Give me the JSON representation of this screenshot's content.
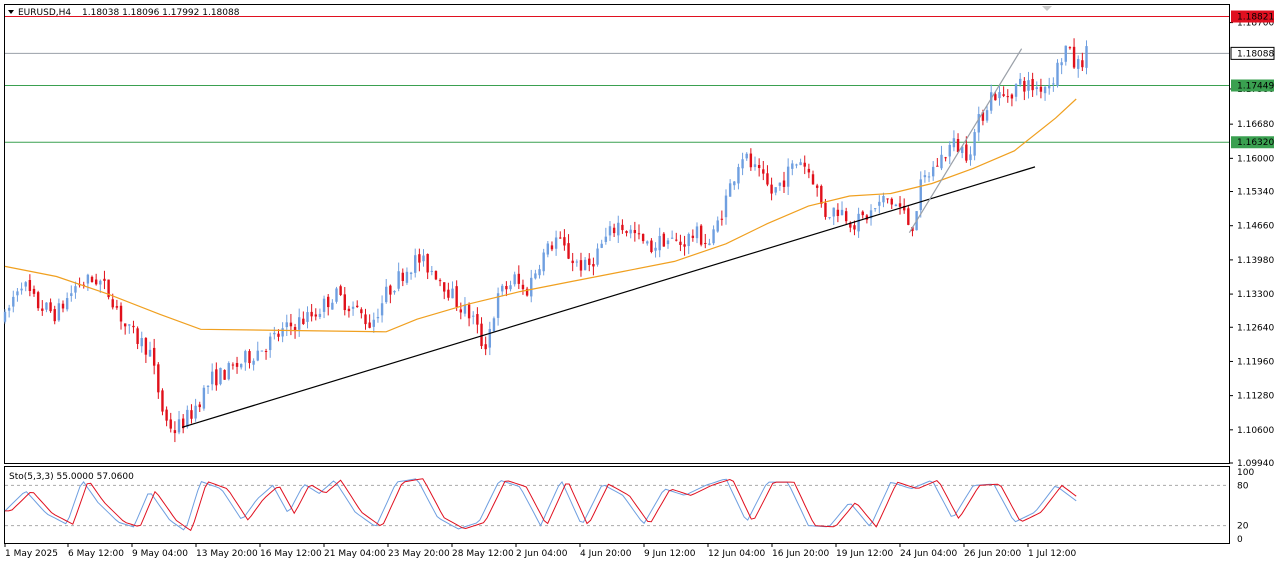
{
  "header": {
    "symbol": "EURUSD,H4",
    "ohlc": "1.18038 1.18096 1.17992 1.18088"
  },
  "indicator": {
    "label": "Sto(5,3,3) 55.0000 57.0600",
    "levels": [
      "100",
      "80",
      "20",
      "0"
    ]
  },
  "colors": {
    "bull": "#6f9fe0",
    "bear": "#e0101a",
    "ma": "#f0a020",
    "resistance": "#e01020",
    "support": "#3aa050",
    "current": "#9aa0a8",
    "sto_main": "#6f9fe0",
    "sto_signal": "#e01020"
  },
  "chart_data": {
    "type": "candlestick",
    "symbol": "EURUSD",
    "timeframe": "H4",
    "ylim": [
      1.0994,
      1.1905
    ],
    "y_ticks": [
      "1.18700",
      "1.17380",
      "1.16680",
      "1.16000",
      "1.15340",
      "1.14660",
      "1.13980",
      "1.13300",
      "1.12640",
      "1.11960",
      "1.11280",
      "1.10600",
      "1.09940"
    ],
    "y_tick_values": [
      1.187,
      1.1738,
      1.1668,
      1.16,
      1.1534,
      1.1466,
      1.1398,
      1.133,
      1.1264,
      1.1196,
      1.1128,
      1.106,
      1.0994
    ],
    "x_ticks": [
      "1 May 2025",
      "6 May 12:00",
      "9 May 04:00",
      "13 May 20:00",
      "16 May 12:00",
      "21 May 04:00",
      "23 May 20:00",
      "28 May 12:00",
      "2 Jun 04:00",
      "4 Jun 20:00",
      "9 Jun 12:00",
      "12 Jun 04:00",
      "16 Jun 20:00",
      "19 Jun 12:00",
      "24 Jun 04:00",
      "26 Jun 20:00",
      "1 Jul 12:00"
    ],
    "levels": [
      {
        "label": "1.18821",
        "value": 1.18821,
        "kind": "resistance"
      },
      {
        "label": "1.18088",
        "value": 1.18088,
        "kind": "current"
      },
      {
        "label": "1.17449",
        "value": 1.17449,
        "kind": "support"
      },
      {
        "label": "1.16320",
        "value": 1.1632,
        "kind": "support"
      }
    ],
    "trendlines": [
      {
        "from": [
          0.172,
          1.1065
        ],
        "to": [
          1.0,
          1.1583
        ],
        "color": "#000000"
      },
      {
        "from": [
          0.878,
          1.1452
        ],
        "to": [
          0.987,
          1.1818
        ],
        "color": "#9aa0a8"
      }
    ],
    "price_anchors": [
      [
        0.0,
        1.128
      ],
      [
        0.015,
        1.136
      ],
      [
        0.03,
        1.131
      ],
      [
        0.05,
        1.129
      ],
      [
        0.07,
        1.135
      ],
      [
        0.09,
        1.136
      ],
      [
        0.105,
        1.132
      ],
      [
        0.118,
        1.126
      ],
      [
        0.14,
        1.122
      ],
      [
        0.155,
        1.108
      ],
      [
        0.165,
        1.106
      ],
      [
        0.18,
        1.109
      ],
      [
        0.2,
        1.116
      ],
      [
        0.22,
        1.118
      ],
      [
        0.24,
        1.121
      ],
      [
        0.26,
        1.124
      ],
      [
        0.28,
        1.127
      ],
      [
        0.3,
        1.129
      ],
      [
        0.32,
        1.133
      ],
      [
        0.34,
        1.13
      ],
      [
        0.355,
        1.127
      ],
      [
        0.37,
        1.133
      ],
      [
        0.385,
        1.137
      ],
      [
        0.4,
        1.14
      ],
      [
        0.42,
        1.137
      ],
      [
        0.44,
        1.131
      ],
      [
        0.455,
        1.128
      ],
      [
        0.465,
        1.122
      ],
      [
        0.48,
        1.133
      ],
      [
        0.495,
        1.136
      ],
      [
        0.505,
        1.133
      ],
      [
        0.52,
        1.14
      ],
      [
        0.535,
        1.144
      ],
      [
        0.55,
        1.14
      ],
      [
        0.565,
        1.138
      ],
      [
        0.58,
        1.143
      ],
      [
        0.595,
        1.147
      ],
      [
        0.61,
        1.145
      ],
      [
        0.625,
        1.142
      ],
      [
        0.64,
        1.144
      ],
      [
        0.655,
        1.143
      ],
      [
        0.67,
        1.145
      ],
      [
        0.685,
        1.143
      ],
      [
        0.7,
        1.152
      ],
      [
        0.715,
        1.161
      ],
      [
        0.73,
        1.157
      ],
      [
        0.745,
        1.153
      ],
      [
        0.76,
        1.157
      ],
      [
        0.772,
        1.16
      ],
      [
        0.785,
        1.156
      ],
      [
        0.795,
        1.149
      ],
      [
        0.81,
        1.15
      ],
      [
        0.825,
        1.147
      ],
      [
        0.84,
        1.149
      ],
      [
        0.855,
        1.152
      ],
      [
        0.87,
        1.15
      ],
      [
        0.88,
        1.146
      ],
      [
        0.89,
        1.155
      ],
      [
        0.905,
        1.159
      ],
      [
        0.92,
        1.163
      ],
      [
        0.935,
        1.161
      ],
      [
        0.945,
        1.167
      ],
      [
        0.958,
        1.173
      ],
      [
        0.97,
        1.172
      ],
      [
        0.985,
        1.175
      ],
      [
        1.0,
        1.174
      ],
      [
        1.015,
        1.175
      ],
      [
        1.03,
        1.182
      ],
      [
        1.04,
        1.178
      ],
      [
        1.05,
        1.1809
      ]
    ],
    "ma_anchors": [
      [
        0.0,
        1.1385
      ],
      [
        0.05,
        1.1365
      ],
      [
        0.1,
        1.133
      ],
      [
        0.15,
        1.129
      ],
      [
        0.19,
        1.126
      ],
      [
        0.37,
        1.1255
      ],
      [
        0.4,
        1.128
      ],
      [
        0.45,
        1.131
      ],
      [
        0.5,
        1.1335
      ],
      [
        0.55,
        1.1355
      ],
      [
        0.6,
        1.1375
      ],
      [
        0.65,
        1.1395
      ],
      [
        0.7,
        1.143
      ],
      [
        0.74,
        1.147
      ],
      [
        0.78,
        1.1505
      ],
      [
        0.82,
        1.1525
      ],
      [
        0.86,
        1.153
      ],
      [
        0.9,
        1.155
      ],
      [
        0.94,
        1.158
      ],
      [
        0.98,
        1.1615
      ],
      [
        1.02,
        1.168
      ],
      [
        1.04,
        1.1718
      ]
    ],
    "stochastic_anchors": [
      [
        0.0,
        42
      ],
      [
        0.02,
        72
      ],
      [
        0.04,
        38
      ],
      [
        0.06,
        22
      ],
      [
        0.075,
        88
      ],
      [
        0.09,
        55
      ],
      [
        0.11,
        25
      ],
      [
        0.125,
        18
      ],
      [
        0.14,
        72
      ],
      [
        0.16,
        28
      ],
      [
        0.175,
        12
      ],
      [
        0.19,
        86
      ],
      [
        0.21,
        75
      ],
      [
        0.23,
        28
      ],
      [
        0.245,
        60
      ],
      [
        0.26,
        80
      ],
      [
        0.275,
        38
      ],
      [
        0.29,
        82
      ],
      [
        0.305,
        68
      ],
      [
        0.32,
        88
      ],
      [
        0.34,
        40
      ],
      [
        0.36,
        18
      ],
      [
        0.38,
        85
      ],
      [
        0.4,
        90
      ],
      [
        0.42,
        32
      ],
      [
        0.44,
        15
      ],
      [
        0.46,
        25
      ],
      [
        0.48,
        88
      ],
      [
        0.5,
        78
      ],
      [
        0.52,
        20
      ],
      [
        0.54,
        88
      ],
      [
        0.56,
        20
      ],
      [
        0.58,
        82
      ],
      [
        0.6,
        65
      ],
      [
        0.62,
        22
      ],
      [
        0.64,
        75
      ],
      [
        0.66,
        65
      ],
      [
        0.68,
        80
      ],
      [
        0.7,
        90
      ],
      [
        0.72,
        25
      ],
      [
        0.74,
        85
      ],
      [
        0.76,
        85
      ],
      [
        0.78,
        20
      ],
      [
        0.8,
        18
      ],
      [
        0.82,
        55
      ],
      [
        0.84,
        18
      ],
      [
        0.86,
        85
      ],
      [
        0.88,
        75
      ],
      [
        0.9,
        88
      ],
      [
        0.92,
        30
      ],
      [
        0.94,
        80
      ],
      [
        0.96,
        82
      ],
      [
        0.98,
        25
      ],
      [
        1.0,
        40
      ],
      [
        1.02,
        80
      ],
      [
        1.04,
        57
      ]
    ]
  }
}
